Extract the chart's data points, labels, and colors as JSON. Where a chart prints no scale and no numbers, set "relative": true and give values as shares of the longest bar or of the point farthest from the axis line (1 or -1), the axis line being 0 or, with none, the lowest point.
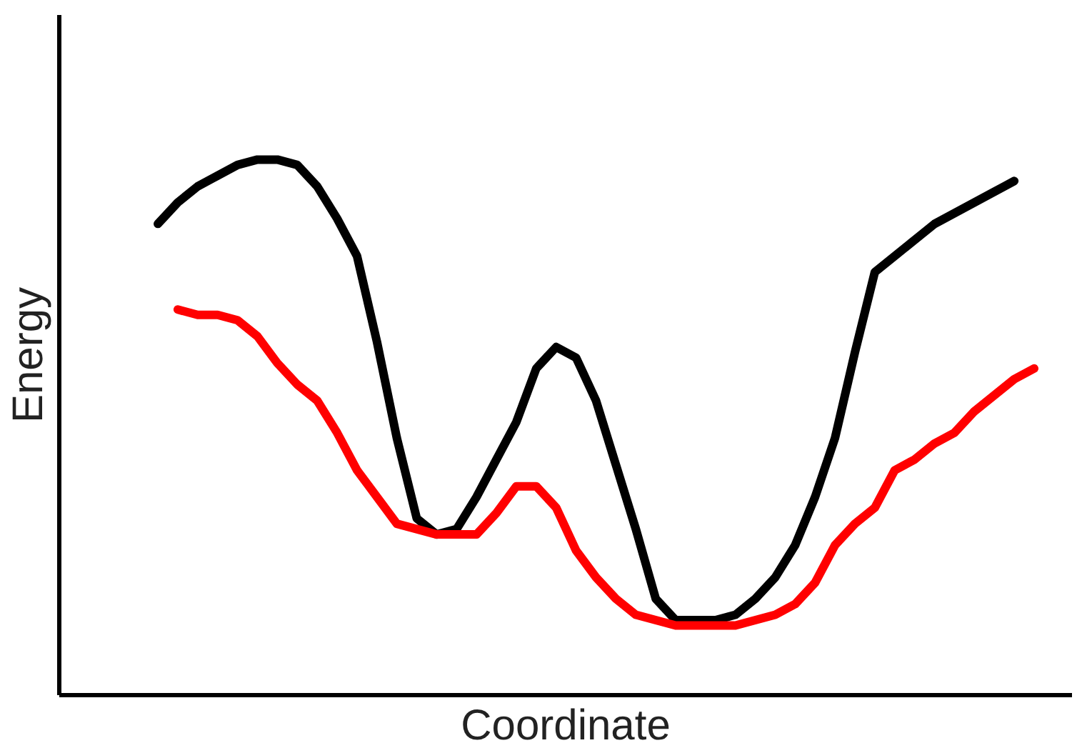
{
  "chart_data": {
    "type": "line",
    "relative": true,
    "xlabel": "Coordinate",
    "ylabel": "Energy",
    "marker": "none",
    "line_style": "solid",
    "categories": [
      null,
      null,
      null,
      null,
      null,
      null,
      null,
      null,
      null,
      null,
      null,
      null,
      null,
      null,
      null,
      null,
      null,
      null,
      null,
      null,
      null,
      null,
      null,
      null,
      null,
      null,
      null,
      null,
      null,
      null,
      null,
      null,
      null,
      null,
      null,
      null,
      null,
      null,
      null,
      null,
      null,
      null,
      null,
      null,
      null
    ],
    "series": [
      {
        "color": "#000000",
        "values": [
          0.88,
          0.92,
          0.95,
          0.97,
          0.99,
          1.0,
          1.0,
          0.99,
          0.95,
          0.89,
          0.82,
          0.66,
          0.48,
          0.33,
          0.3,
          0.31,
          0.37,
          0.44,
          0.51,
          0.61,
          0.65,
          0.63,
          0.55,
          0.43,
          0.31,
          0.18,
          0.14,
          0.14,
          0.14,
          0.15,
          0.18,
          0.22,
          0.28,
          0.37,
          0.48,
          0.64,
          0.79,
          0.82,
          0.85,
          0.88,
          0.9,
          0.92,
          0.94,
          0.96,
          null
        ]
      },
      {
        "color": "#ff0000",
        "values": [
          null,
          0.72,
          0.71,
          0.71,
          0.7,
          0.67,
          0.62,
          0.58,
          0.55,
          0.49,
          0.42,
          0.37,
          0.32,
          0.31,
          0.3,
          0.3,
          0.3,
          0.34,
          0.39,
          0.39,
          0.35,
          0.27,
          0.22,
          0.18,
          0.15,
          0.14,
          0.13,
          0.13,
          0.13,
          0.13,
          0.14,
          0.15,
          0.17,
          0.21,
          0.28,
          0.32,
          0.35,
          0.42,
          0.44,
          0.47,
          0.49,
          0.53,
          0.56,
          0.59,
          0.61
        ]
      }
    ]
  }
}
